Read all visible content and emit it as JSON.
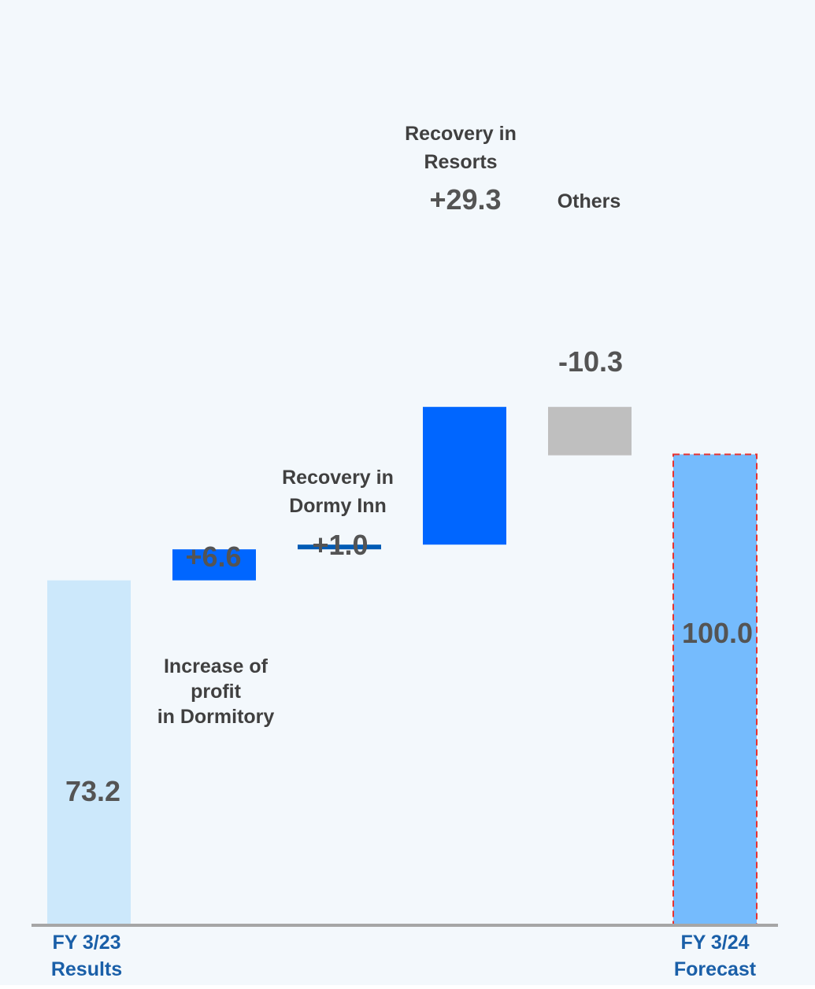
{
  "chart_data": {
    "type": "bar",
    "subtype": "waterfall",
    "ylim": [
      0,
      110
    ],
    "grid": false,
    "steps": [
      {
        "kind": "total",
        "category": [
          "FY 3/23",
          "Results"
        ],
        "value": 73.2,
        "value_label": "73.2",
        "color": "#cce8fb"
      },
      {
        "kind": "delta",
        "value": 6.6,
        "value_label": "+6.6",
        "description": [
          "Increase of",
          "profit",
          "in Dormitory"
        ],
        "color": "#0066ff"
      },
      {
        "kind": "delta",
        "value": 1.0,
        "value_label": "+1.0",
        "description": [
          "Recovery in",
          "Dormy Inn"
        ],
        "color": "#005bb5"
      },
      {
        "kind": "delta",
        "value": 29.3,
        "value_label": "+29.3",
        "description": [
          "Recovery in",
          "Resorts"
        ],
        "color": "#0066ff"
      },
      {
        "kind": "delta",
        "value": -10.3,
        "value_label": "-10.3",
        "description": [
          "Others"
        ],
        "color": "#bfbfbf"
      },
      {
        "kind": "total",
        "category": [
          "FY 3/24",
          "Forecast"
        ],
        "value": 100.0,
        "value_label": "100.0",
        "color": "#75bbfd",
        "outline": "#e8322f",
        "outline_style": "dashed"
      }
    ],
    "axis_color": "#a6a6a6"
  }
}
